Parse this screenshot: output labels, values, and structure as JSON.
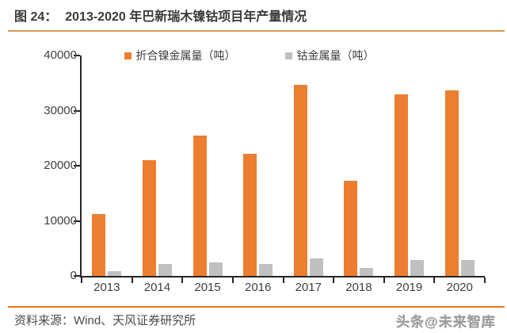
{
  "title": {
    "prefix": "图 24：",
    "text": "2013-2020 年巴新瑞木镍钴项目年产量情况"
  },
  "chart_data": {
    "type": "bar",
    "title": "2013-2020 年巴新瑞木镍钴项目年产量情况",
    "categories": [
      "2013",
      "2014",
      "2015",
      "2016",
      "2017",
      "2018",
      "2019",
      "2020"
    ],
    "series": [
      {
        "name": "折合镍金属量（吨）",
        "color": "#ED7D31",
        "values": [
          11200,
          21000,
          25500,
          22200,
          34700,
          17300,
          33000,
          33600
        ]
      },
      {
        "name": "钴金属量（吨）",
        "color": "#C0C0C0",
        "values": [
          800,
          2100,
          2500,
          2100,
          3200,
          1500,
          2850,
          2900
        ]
      }
    ],
    "xlabel": "",
    "ylabel": "",
    "ylim": [
      0,
      40000
    ],
    "yticks": [
      0,
      10000,
      20000,
      30000,
      40000
    ],
    "grid": false,
    "legend_position": "top"
  },
  "colors": {
    "axis": "#262626",
    "title_rule": "#d69c4f",
    "footer_rule": "#e87722"
  },
  "footer": {
    "source": "资料来源：Wind、天风证券研究所",
    "watermark": "头条@未来智库"
  }
}
